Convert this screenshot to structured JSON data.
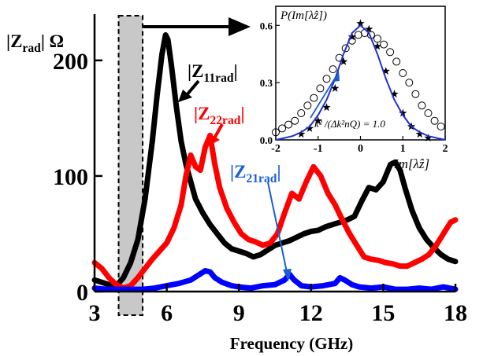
{
  "chart_data": [
    {
      "type": "line",
      "title": "",
      "xlabel": "Frequency (GHz)",
      "ylabel": "|Zrad| Ω",
      "ylabel_parts": {
        "main": "|Z",
        "sub": "rad",
        "tail": "| Ω"
      },
      "xlim": [
        3,
        18
      ],
      "ylim": [
        0,
        240
      ],
      "xticks": [
        3,
        6,
        9,
        12,
        15,
        18
      ],
      "yticks": [
        0,
        100,
        200
      ],
      "xtick_labels": [
        "3",
        "6",
        "9",
        "12",
        "15",
        "18"
      ],
      "ytick_labels": [
        "0",
        "100",
        "200"
      ],
      "highlight_band": {
        "x": [
          4.0,
          5.0
        ],
        "fill": "#c8c8c8",
        "border": "dashed"
      },
      "series": [
        {
          "name": "|Z11rad|",
          "label_parts": {
            "main": "|Z",
            "sub": "11rad",
            "tail": "|"
          },
          "color": "#000000",
          "x": [
            3.0,
            3.3,
            3.6,
            3.9,
            4.2,
            4.5,
            4.8,
            5.1,
            5.4,
            5.6,
            5.8,
            5.95,
            6.05,
            6.2,
            6.4,
            6.6,
            6.8,
            7.0,
            7.2,
            7.5,
            7.8,
            8.1,
            8.4,
            8.7,
            9.0,
            9.3,
            9.6,
            9.9,
            10.2,
            10.5,
            10.8,
            11.1,
            11.4,
            11.7,
            12.0,
            12.3,
            12.6,
            12.9,
            13.2,
            13.5,
            13.8,
            14.1,
            14.4,
            14.7,
            15.0,
            15.3,
            15.5,
            15.7,
            15.9,
            16.2,
            16.5,
            16.8,
            17.1,
            17.4,
            17.7,
            18.0
          ],
          "y": [
            10,
            8,
            6,
            5,
            12,
            25,
            45,
            80,
            130,
            170,
            205,
            222,
            218,
            195,
            160,
            130,
            110,
            95,
            80,
            68,
            58,
            50,
            42,
            37,
            35,
            33,
            30,
            32,
            36,
            40,
            42,
            44,
            47,
            50,
            52,
            53,
            56,
            58,
            60,
            62,
            65,
            78,
            90,
            88,
            95,
            110,
            112,
            105,
            90,
            70,
            55,
            45,
            38,
            32,
            28,
            26
          ]
        },
        {
          "name": "|Z22rad|",
          "label_parts": {
            "main": "|Z",
            "sub": "22rad",
            "tail": "|"
          },
          "color": "#ff0000",
          "x": [
            3.0,
            3.3,
            3.6,
            3.9,
            4.2,
            4.5,
            4.8,
            5.1,
            5.4,
            5.7,
            6.0,
            6.3,
            6.6,
            6.8,
            7.0,
            7.2,
            7.4,
            7.6,
            7.8,
            8.0,
            8.2,
            8.5,
            8.8,
            9.1,
            9.4,
            9.7,
            10.0,
            10.3,
            10.6,
            10.9,
            11.2,
            11.5,
            11.8,
            12.1,
            12.4,
            12.7,
            13.0,
            13.3,
            13.6,
            13.9,
            14.2,
            14.5,
            14.8,
            15.1,
            15.4,
            15.7,
            16.0,
            16.3,
            16.6,
            16.9,
            17.2,
            17.5,
            17.8,
            18.0
          ],
          "y": [
            25,
            20,
            12,
            6,
            3,
            5,
            12,
            20,
            28,
            35,
            42,
            55,
            75,
            100,
            118,
            108,
            105,
            125,
            135,
            110,
            90,
            72,
            60,
            50,
            45,
            43,
            40,
            42,
            50,
            68,
            85,
            80,
            95,
            108,
            100,
            85,
            75,
            62,
            50,
            40,
            30,
            28,
            27,
            25,
            24,
            22,
            22,
            25,
            28,
            32,
            40,
            50,
            60,
            62
          ]
        },
        {
          "name": "|Z21rad|",
          "label_parts": {
            "main": "|Z",
            "sub": "21rad",
            "tail": "|"
          },
          "color": "#0000ff",
          "x": [
            3.0,
            3.5,
            4.0,
            4.5,
            5.0,
            5.5,
            6.0,
            6.5,
            7.0,
            7.3,
            7.6,
            7.8,
            8.0,
            8.3,
            8.7,
            9.0,
            9.5,
            10.0,
            10.5,
            10.9,
            11.1,
            11.3,
            11.6,
            12.0,
            12.5,
            13.0,
            13.2,
            13.4,
            13.7,
            14.0,
            14.5,
            15.0,
            15.5,
            16.0,
            16.5,
            17.0,
            17.5,
            18.0
          ],
          "y": [
            3,
            2,
            2,
            2,
            2,
            3,
            5,
            7,
            10,
            14,
            18,
            17,
            12,
            8,
            5,
            4,
            3,
            5,
            6,
            10,
            15,
            10,
            5,
            4,
            5,
            7,
            12,
            10,
            6,
            4,
            3,
            4,
            2,
            2,
            3,
            2,
            4,
            2
          ]
        }
      ]
    },
    {
      "type": "scatter",
      "title": "",
      "ylabel": "P(Im[λ̂z])",
      "xlabel": "Im[λ̂z]",
      "xlim": [
        -2,
        2
      ],
      "ylim": [
        0,
        0.7
      ],
      "xticks": [
        -2,
        -1,
        0,
        1,
        2
      ],
      "yticks": [
        0.0,
        0.3,
        0.6
      ],
      "xtick_labels": [
        "-2",
        "-1",
        "0",
        "1",
        "2"
      ],
      "ytick_labels": [
        "0.0",
        "0.3",
        "0.6"
      ],
      "annotation": "k² /(Δk²nQ) = 1.0",
      "series": [
        {
          "name": "",
          "marker": "circle-open",
          "color": "#000000",
          "x": [
            -2.0,
            -1.85,
            -1.7,
            -1.55,
            -1.4,
            -1.25,
            -1.1,
            -0.95,
            -0.8,
            -0.65,
            -0.5,
            -0.35,
            -0.2,
            -0.05,
            0.1,
            0.25,
            0.4,
            0.55,
            0.7,
            0.85,
            1.0,
            1.15,
            1.3,
            1.45,
            1.6,
            1.75,
            1.9
          ],
          "y": [
            0.04,
            0.06,
            0.08,
            0.1,
            0.14,
            0.18,
            0.22,
            0.27,
            0.32,
            0.37,
            0.43,
            0.48,
            0.52,
            0.55,
            0.56,
            0.55,
            0.53,
            0.5,
            0.46,
            0.41,
            0.35,
            0.3,
            0.24,
            0.18,
            0.14,
            0.1,
            0.07
          ]
        },
        {
          "name": "",
          "marker": "star",
          "color": "#000000",
          "x": [
            -1.4,
            -1.2,
            -1.0,
            -0.8,
            -0.6,
            -0.4,
            -0.2,
            0.0,
            0.2,
            0.4,
            0.6,
            0.8,
            1.0,
            1.2,
            1.4,
            1.6
          ],
          "y": [
            0.03,
            0.06,
            0.1,
            0.17,
            0.27,
            0.41,
            0.54,
            0.61,
            0.58,
            0.49,
            0.36,
            0.24,
            0.14,
            0.07,
            0.03,
            0.01
          ]
        },
        {
          "name": "",
          "marker": "line",
          "color": "#2030d0",
          "x": [
            -2.0,
            -1.8,
            -1.6,
            -1.4,
            -1.2,
            -1.0,
            -0.8,
            -0.6,
            -0.4,
            -0.2,
            0.0,
            0.2,
            0.4,
            0.6,
            0.8,
            1.0,
            1.2,
            1.4,
            1.6,
            1.8,
            2.0
          ],
          "y": [
            0.0,
            0.01,
            0.02,
            0.04,
            0.07,
            0.13,
            0.21,
            0.32,
            0.45,
            0.56,
            0.6,
            0.56,
            0.45,
            0.32,
            0.21,
            0.13,
            0.07,
            0.04,
            0.02,
            0.01,
            0.0
          ]
        }
      ]
    }
  ]
}
